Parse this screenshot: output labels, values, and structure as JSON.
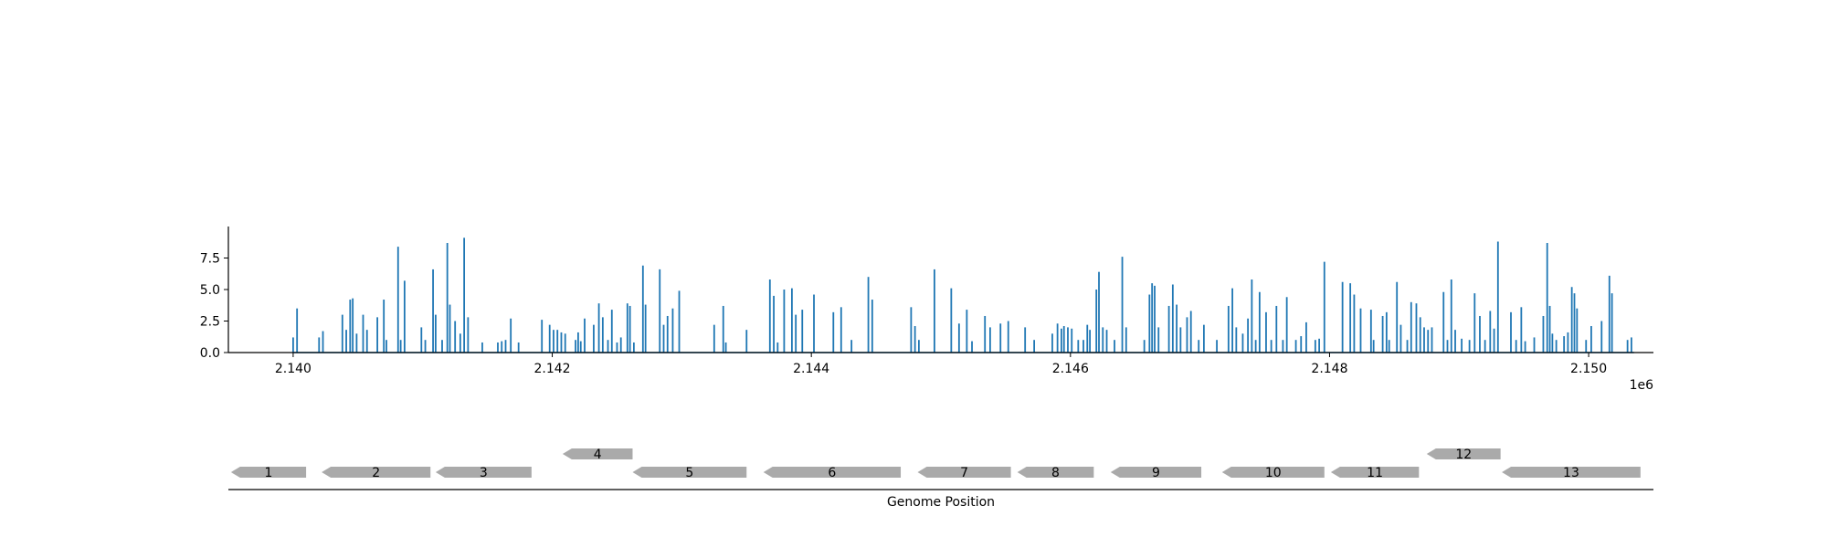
{
  "chart_data": [
    {
      "type": "bar",
      "subtype": "coverage-track",
      "color": "#1f77b4",
      "xlim": [
        2139500,
        2150500
      ],
      "ylim": [
        0,
        10
      ],
      "x_ticks": [
        2140000,
        2142000,
        2144000,
        2146000,
        2148000,
        2150000
      ],
      "x_tick_labels": [
        "2.140",
        "2.142",
        "2.144",
        "2.146",
        "2.148",
        "2.150"
      ],
      "y_ticks": [
        0,
        2.5,
        5,
        7.5
      ],
      "y_tick_labels": [
        "0.0",
        "2.5",
        "5.0",
        "7.5"
      ],
      "x_offset_label": "1e6",
      "grid": false,
      "bars": [
        [
          2140000,
          1.2
        ],
        [
          2140030,
          3.5
        ],
        [
          2140200,
          1.2
        ],
        [
          2140230,
          1.7
        ],
        [
          2140380,
          3.0
        ],
        [
          2140410,
          1.8
        ],
        [
          2140440,
          4.2
        ],
        [
          2140460,
          4.3
        ],
        [
          2140490,
          1.5
        ],
        [
          2140540,
          3.0
        ],
        [
          2140570,
          1.8
        ],
        [
          2140650,
          2.8
        ],
        [
          2140700,
          4.2
        ],
        [
          2140720,
          1.0
        ],
        [
          2140810,
          8.4
        ],
        [
          2140830,
          1.0
        ],
        [
          2140860,
          5.7
        ],
        [
          2140990,
          2.0
        ],
        [
          2141020,
          1.0
        ],
        [
          2141080,
          6.6
        ],
        [
          2141100,
          3.0
        ],
        [
          2141150,
          1.0
        ],
        [
          2141190,
          8.7
        ],
        [
          2141210,
          3.8
        ],
        [
          2141250,
          2.5
        ],
        [
          2141290,
          1.5
        ],
        [
          2141320,
          9.1
        ],
        [
          2141350,
          2.8
        ],
        [
          2141460,
          0.8
        ],
        [
          2141580,
          0.8
        ],
        [
          2141610,
          0.9
        ],
        [
          2141640,
          1.0
        ],
        [
          2141680,
          2.7
        ],
        [
          2141740,
          0.8
        ],
        [
          2141920,
          2.6
        ],
        [
          2141980,
          2.2
        ],
        [
          2142010,
          1.8
        ],
        [
          2142040,
          1.8
        ],
        [
          2142070,
          1.6
        ],
        [
          2142100,
          1.5
        ],
        [
          2142180,
          1.0
        ],
        [
          2142200,
          1.6
        ],
        [
          2142220,
          0.9
        ],
        [
          2142250,
          2.7
        ],
        [
          2142320,
          2.2
        ],
        [
          2142360,
          3.9
        ],
        [
          2142390,
          2.8
        ],
        [
          2142430,
          1.0
        ],
        [
          2142460,
          3.4
        ],
        [
          2142500,
          0.8
        ],
        [
          2142530,
          1.2
        ],
        [
          2142580,
          3.9
        ],
        [
          2142600,
          3.7
        ],
        [
          2142630,
          0.8
        ],
        [
          2142700,
          6.9
        ],
        [
          2142720,
          3.8
        ],
        [
          2142830,
          6.6
        ],
        [
          2142860,
          2.2
        ],
        [
          2142890,
          2.9
        ],
        [
          2142930,
          3.5
        ],
        [
          2142980,
          4.9
        ],
        [
          2143250,
          2.2
        ],
        [
          2143320,
          3.7
        ],
        [
          2143340,
          0.8
        ],
        [
          2143500,
          1.8
        ],
        [
          2143680,
          5.8
        ],
        [
          2143710,
          4.5
        ],
        [
          2143740,
          0.8
        ],
        [
          2143790,
          5.0
        ],
        [
          2143850,
          5.1
        ],
        [
          2143880,
          3.0
        ],
        [
          2143930,
          3.4
        ],
        [
          2144020,
          4.6
        ],
        [
          2144170,
          3.2
        ],
        [
          2144230,
          3.6
        ],
        [
          2144310,
          1.0
        ],
        [
          2144440,
          6.0
        ],
        [
          2144470,
          4.2
        ],
        [
          2144770,
          3.6
        ],
        [
          2144800,
          2.1
        ],
        [
          2144830,
          1.0
        ],
        [
          2144950,
          6.6
        ],
        [
          2145080,
          5.1
        ],
        [
          2145140,
          2.3
        ],
        [
          2145200,
          3.4
        ],
        [
          2145240,
          0.9
        ],
        [
          2145340,
          2.9
        ],
        [
          2145380,
          2.0
        ],
        [
          2145460,
          2.3
        ],
        [
          2145520,
          2.5
        ],
        [
          2145650,
          2.0
        ],
        [
          2145720,
          1.0
        ],
        [
          2145860,
          1.5
        ],
        [
          2145900,
          2.3
        ],
        [
          2145930,
          1.9
        ],
        [
          2145950,
          2.1
        ],
        [
          2145980,
          2.0
        ],
        [
          2146010,
          1.9
        ],
        [
          2146060,
          1.0
        ],
        [
          2146100,
          1.0
        ],
        [
          2146130,
          2.2
        ],
        [
          2146150,
          1.8
        ],
        [
          2146200,
          5.0
        ],
        [
          2146220,
          6.4
        ],
        [
          2146250,
          2.0
        ],
        [
          2146280,
          1.8
        ],
        [
          2146340,
          1.0
        ],
        [
          2146400,
          7.6
        ],
        [
          2146430,
          2.0
        ],
        [
          2146570,
          1.0
        ],
        [
          2146610,
          4.6
        ],
        [
          2146630,
          5.5
        ],
        [
          2146650,
          5.3
        ],
        [
          2146680,
          2.0
        ],
        [
          2146760,
          3.7
        ],
        [
          2146790,
          5.4
        ],
        [
          2146820,
          3.8
        ],
        [
          2146850,
          2.0
        ],
        [
          2146900,
          2.8
        ],
        [
          2146930,
          3.3
        ],
        [
          2146990,
          1.0
        ],
        [
          2147030,
          2.2
        ],
        [
          2147130,
          1.0
        ],
        [
          2147220,
          3.7
        ],
        [
          2147250,
          5.1
        ],
        [
          2147280,
          2.0
        ],
        [
          2147330,
          1.5
        ],
        [
          2147370,
          2.7
        ],
        [
          2147400,
          5.8
        ],
        [
          2147430,
          1.0
        ],
        [
          2147460,
          4.8
        ],
        [
          2147510,
          3.2
        ],
        [
          2147550,
          1.0
        ],
        [
          2147590,
          3.7
        ],
        [
          2147640,
          1.0
        ],
        [
          2147670,
          4.4
        ],
        [
          2147740,
          1.0
        ],
        [
          2147780,
          1.3
        ],
        [
          2147820,
          2.4
        ],
        [
          2147890,
          1.0
        ],
        [
          2147920,
          1.1
        ],
        [
          2147960,
          7.2
        ],
        [
          2148100,
          5.6
        ],
        [
          2148160,
          5.5
        ],
        [
          2148190,
          4.6
        ],
        [
          2148240,
          3.5
        ],
        [
          2148320,
          3.4
        ],
        [
          2148340,
          1.0
        ],
        [
          2148410,
          2.9
        ],
        [
          2148440,
          3.2
        ],
        [
          2148460,
          1.0
        ],
        [
          2148520,
          5.6
        ],
        [
          2148550,
          2.2
        ],
        [
          2148600,
          1.0
        ],
        [
          2148630,
          4.0
        ],
        [
          2148670,
          3.9
        ],
        [
          2148700,
          2.8
        ],
        [
          2148730,
          2.0
        ],
        [
          2148760,
          1.8
        ],
        [
          2148790,
          2.0
        ],
        [
          2148880,
          4.8
        ],
        [
          2148910,
          1.0
        ],
        [
          2148940,
          5.8
        ],
        [
          2148970,
          1.8
        ],
        [
          2149020,
          1.1
        ],
        [
          2149080,
          1.0
        ],
        [
          2149120,
          4.7
        ],
        [
          2149160,
          2.9
        ],
        [
          2149200,
          1.0
        ],
        [
          2149240,
          3.3
        ],
        [
          2149270,
          1.9
        ],
        [
          2149300,
          8.8
        ],
        [
          2149400,
          3.2
        ],
        [
          2149440,
          1.0
        ],
        [
          2149480,
          3.6
        ],
        [
          2149510,
          0.9
        ],
        [
          2149580,
          1.2
        ],
        [
          2149650,
          2.9
        ],
        [
          2149680,
          8.7
        ],
        [
          2149700,
          3.7
        ],
        [
          2149720,
          1.5
        ],
        [
          2149750,
          1.0
        ],
        [
          2149810,
          1.3
        ],
        [
          2149840,
          1.6
        ],
        [
          2149870,
          5.2
        ],
        [
          2149890,
          4.7
        ],
        [
          2149910,
          3.5
        ],
        [
          2149980,
          1.0
        ],
        [
          2150020,
          2.1
        ],
        [
          2150100,
          2.5
        ],
        [
          2150160,
          6.1
        ],
        [
          2150180,
          4.7
        ],
        [
          2150300,
          1.0
        ],
        [
          2150330,
          1.2
        ]
      ]
    },
    {
      "type": "gene-map",
      "xlabel": "Genome Position",
      "xlim": [
        2139500,
        2150500
      ],
      "gene_color": "#aaaaaa",
      "genes": [
        {
          "label": "1",
          "start": 2139520,
          "end": 2140100,
          "strand": "-",
          "row": 0
        },
        {
          "label": "2",
          "start": 2140220,
          "end": 2141060,
          "strand": "-",
          "row": 0
        },
        {
          "label": "3",
          "start": 2141100,
          "end": 2141840,
          "strand": "-",
          "row": 0
        },
        {
          "label": "4",
          "start": 2142080,
          "end": 2142620,
          "strand": "-",
          "row": 1
        },
        {
          "label": "5",
          "start": 2142620,
          "end": 2143500,
          "strand": "-",
          "row": 0
        },
        {
          "label": "6",
          "start": 2143630,
          "end": 2144690,
          "strand": "-",
          "row": 0
        },
        {
          "label": "7",
          "start": 2144820,
          "end": 2145540,
          "strand": "-",
          "row": 0
        },
        {
          "label": "8",
          "start": 2145590,
          "end": 2146180,
          "strand": "-",
          "row": 0
        },
        {
          "label": "9",
          "start": 2146310,
          "end": 2147010,
          "strand": "-",
          "row": 0
        },
        {
          "label": "10",
          "start": 2147170,
          "end": 2147960,
          "strand": "-",
          "row": 0
        },
        {
          "label": "11",
          "start": 2148010,
          "end": 2148690,
          "strand": "-",
          "row": 0
        },
        {
          "label": "12",
          "start": 2148750,
          "end": 2149320,
          "strand": "-",
          "row": 1
        },
        {
          "label": "13",
          "start": 2149330,
          "end": 2150400,
          "strand": "-",
          "row": 0
        }
      ]
    }
  ]
}
